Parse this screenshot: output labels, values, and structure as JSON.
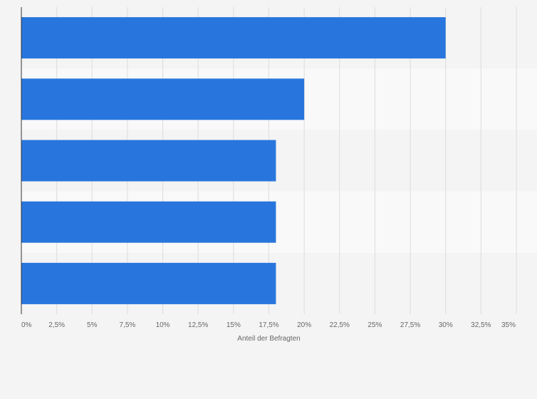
{
  "chart_data": {
    "type": "bar",
    "orientation": "horizontal",
    "categories": [
      "",
      "",
      "",
      "",
      ""
    ],
    "values": [
      30,
      20,
      18,
      18,
      18
    ],
    "xlabel": "Anteil der Befragten",
    "ylabel": "",
    "xlim": [
      0,
      35
    ],
    "x_ticks": [
      0,
      2.5,
      5,
      7.5,
      10,
      12.5,
      15,
      17.5,
      20,
      22.5,
      25,
      27.5,
      30,
      32.5,
      35
    ],
    "x_tick_labels": [
      "0%",
      "2,5%",
      "5%",
      "7,5%",
      "10%",
      "12,5%",
      "15%",
      "17,5%",
      "20%",
      "22,5%",
      "25%",
      "27,5%",
      "30%",
      "32,5%",
      "35%"
    ],
    "grid": true,
    "legend": "none",
    "colors": {
      "bar": "#2876dd",
      "band_dark": "#f4f4f4",
      "band_light": "#f9f9f9",
      "grid": "#dddddd",
      "axis": "#333333",
      "text": "#666666"
    }
  }
}
